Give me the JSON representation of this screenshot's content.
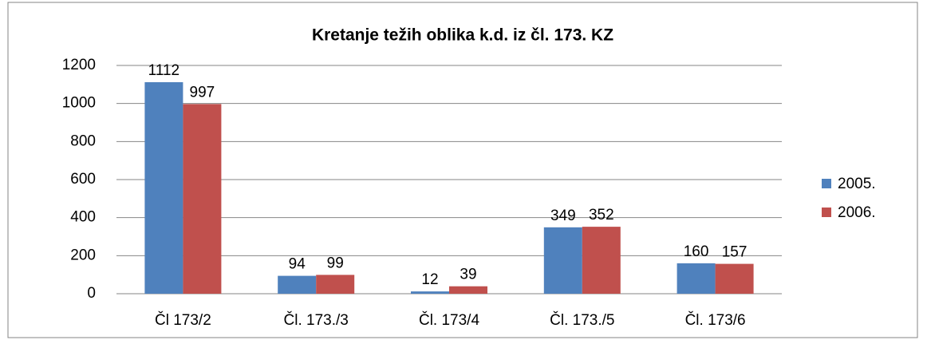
{
  "chart_data": {
    "type": "bar",
    "title": "Kretanje težih oblika k.d. iz čl. 173. KZ",
    "categories": [
      "Čl 173/2",
      "Čl. 173./3",
      "Čl. 173/4",
      "Čl. 173./5",
      "Čl. 173/6"
    ],
    "series": [
      {
        "name": "2005.",
        "color": "#4f81bd",
        "values": [
          1112,
          94,
          12,
          349,
          160
        ]
      },
      {
        "name": "2006.",
        "color": "#c0504d",
        "values": [
          997,
          99,
          39,
          352,
          157
        ]
      }
    ],
    "ylim": [
      0,
      1200
    ],
    "yticks": [
      0,
      200,
      400,
      600,
      800,
      1000,
      1200
    ],
    "grid": true,
    "legend": "right"
  }
}
